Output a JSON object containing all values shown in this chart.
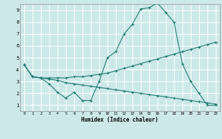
{
  "title": "",
  "xlabel": "Humidex (Indice chaleur)",
  "background_color": "#cce8e8",
  "grid_color": "#ffffff",
  "line_color": "#1a7a6e",
  "xlim": [
    -0.5,
    23.5
  ],
  "ylim": [
    0.5,
    9.5
  ],
  "xticks": [
    0,
    1,
    2,
    3,
    4,
    5,
    6,
    7,
    8,
    9,
    10,
    11,
    12,
    13,
    14,
    15,
    16,
    17,
    18,
    19,
    20,
    21,
    22,
    23
  ],
  "yticks": [
    1,
    2,
    3,
    4,
    5,
    6,
    7,
    8,
    9
  ],
  "curve1_x": [
    0,
    1,
    2,
    3,
    4,
    5,
    6,
    7,
    8,
    9,
    10,
    11,
    12,
    13,
    14,
    15,
    16,
    17,
    18,
    19,
    20,
    21,
    22,
    23
  ],
  "curve1_y": [
    4.4,
    3.4,
    3.3,
    2.8,
    2.1,
    1.6,
    2.1,
    1.4,
    1.4,
    3.0,
    5.0,
    5.5,
    7.0,
    7.8,
    9.1,
    9.2,
    9.6,
    8.8,
    8.0,
    4.5,
    3.0,
    2.0,
    1.0,
    1.0
  ],
  "curve2_x": [
    0,
    1,
    2,
    3,
    4,
    5,
    6,
    7,
    8,
    9,
    10,
    11,
    12,
    13,
    14,
    15,
    16,
    17,
    18,
    19,
    20,
    21,
    22,
    23
  ],
  "curve2_y": [
    4.4,
    3.4,
    3.3,
    3.3,
    3.3,
    3.3,
    3.4,
    3.4,
    3.5,
    3.6,
    3.7,
    3.9,
    4.1,
    4.3,
    4.5,
    4.7,
    4.9,
    5.1,
    5.3,
    5.5,
    5.7,
    5.9,
    6.1,
    6.3
  ],
  "curve3_x": [
    0,
    1,
    2,
    3,
    4,
    5,
    6,
    7,
    8,
    9,
    10,
    11,
    12,
    13,
    14,
    15,
    16,
    17,
    18,
    19,
    20,
    21,
    22,
    23
  ],
  "curve3_y": [
    4.4,
    3.4,
    3.3,
    3.2,
    3.1,
    2.9,
    2.8,
    2.7,
    2.6,
    2.5,
    2.4,
    2.3,
    2.2,
    2.1,
    2.0,
    1.9,
    1.8,
    1.7,
    1.6,
    1.5,
    1.4,
    1.3,
    1.2,
    1.1
  ]
}
